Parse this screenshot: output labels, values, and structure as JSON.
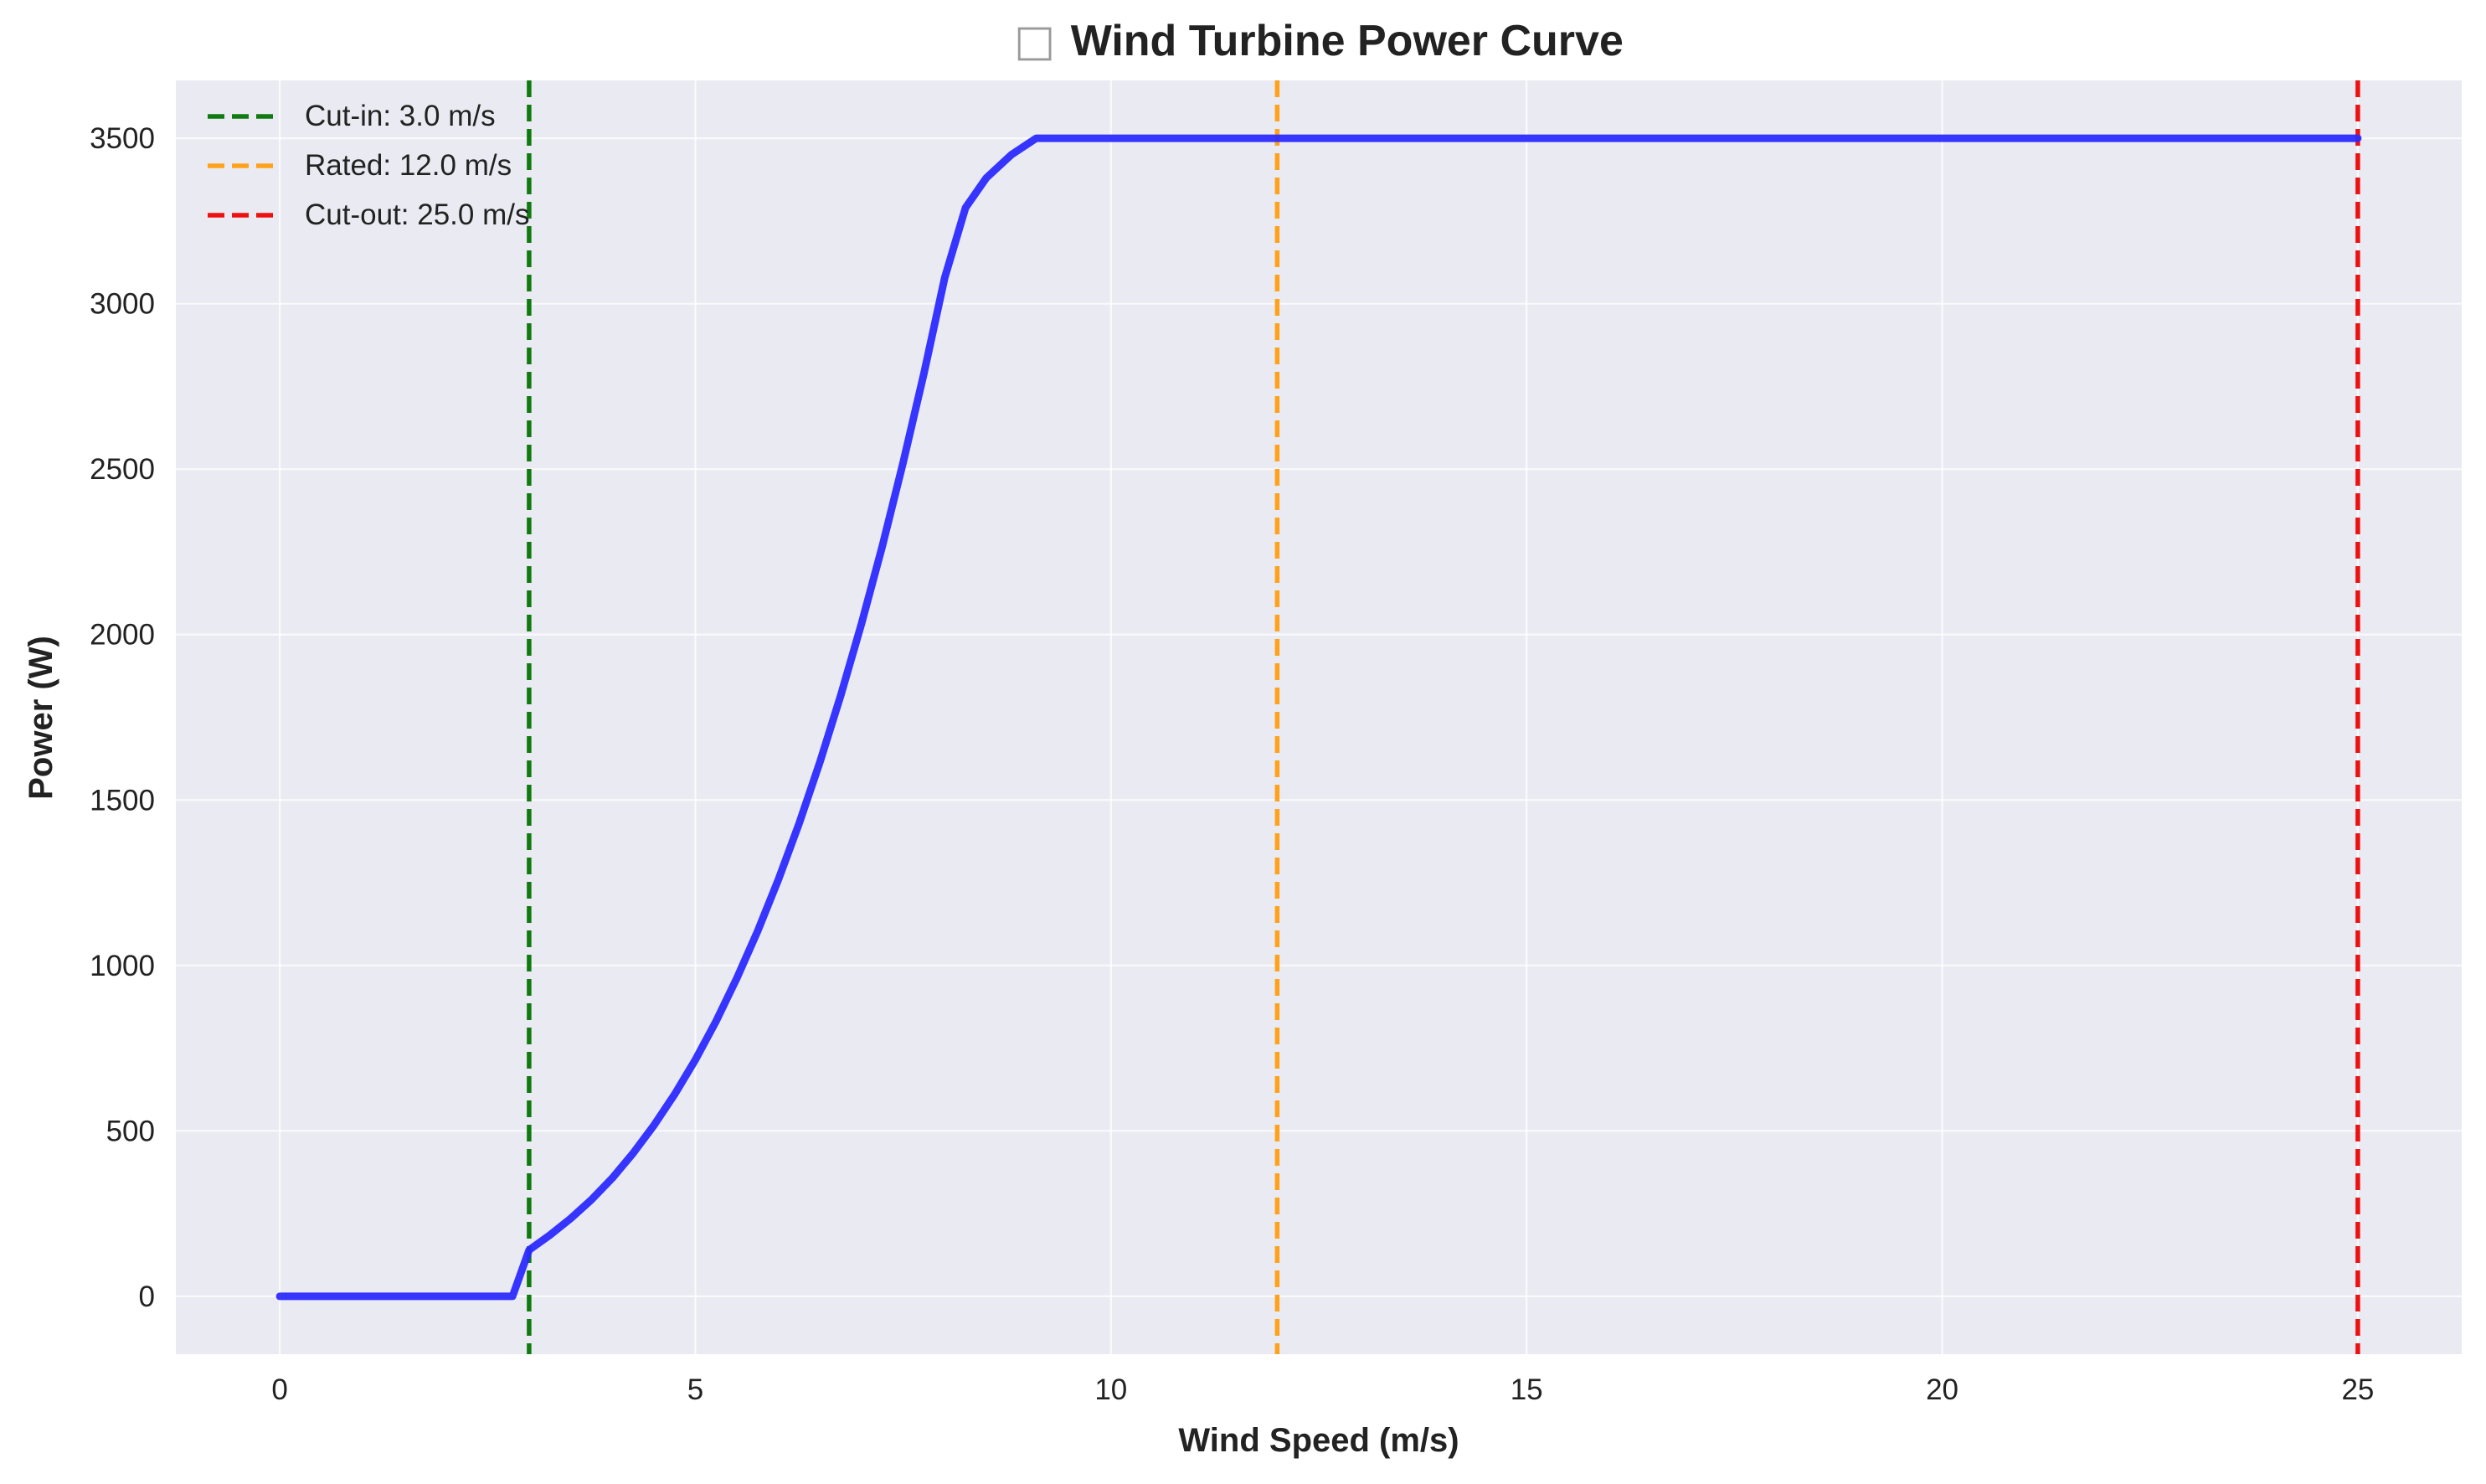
{
  "chart_data": {
    "type": "line",
    "title": "Wind Turbine Power Curve",
    "title_icon": "□",
    "xlabel": "Wind Speed (m/s)",
    "ylabel": "Power (W)",
    "xlim": [
      -1.25,
      26.25
    ],
    "ylim": [
      -175,
      3675
    ],
    "x_ticks": [
      0,
      5,
      10,
      15,
      20,
      25
    ],
    "x_tick_labels": [
      "0",
      "5",
      "10",
      "15",
      "20",
      "25"
    ],
    "y_ticks": [
      0,
      500,
      1000,
      1500,
      2000,
      2500,
      3000,
      3500
    ],
    "y_tick_labels": [
      "0",
      "500",
      "1000",
      "1500",
      "2000",
      "2500",
      "3000",
      "3500"
    ],
    "grid": true,
    "legend_position": "top-left",
    "colors": {
      "plot_background": "#eaeaf2",
      "grid": "#ffffff",
      "curve": "#2b2bff",
      "cut_in": "#0f7a0f",
      "rated": "#ffa21a",
      "cut_out": "#ee1111"
    },
    "series": [
      {
        "x": [
          0,
          2.8,
          3.0,
          3.25,
          3.5,
          3.75,
          4.0,
          4.25,
          4.5,
          4.75,
          5.0,
          5.25,
          5.5,
          5.75,
          6.0,
          6.25,
          6.5,
          6.75,
          7.0,
          7.25,
          7.5,
          7.75,
          8.0,
          8.25,
          8.5,
          8.8,
          9.1,
          25.0
        ],
        "y": [
          0,
          0,
          140,
          185,
          235,
          292,
          357,
          432,
          516,
          610,
          715,
          832,
          962,
          1104,
          1260,
          1430,
          1616,
          1817,
          2034,
          2268,
          2520,
          2790,
          3079,
          3290,
          3380,
          3450,
          3500,
          3500
        ]
      }
    ],
    "reference_lines": [
      {
        "label": "Cut-in: 3.0 m/s",
        "x": 3.0,
        "color_key": "cut_in"
      },
      {
        "label": "Rated: 12.0 m/s",
        "x": 12.0,
        "color_key": "rated"
      },
      {
        "label": "Cut-out: 25.0 m/s",
        "x": 25.0,
        "color_key": "cut_out"
      }
    ]
  }
}
